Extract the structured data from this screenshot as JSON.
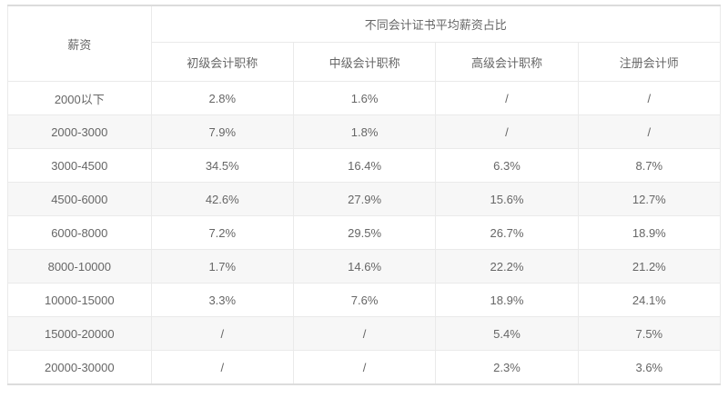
{
  "colors": {
    "background": "#ffffff",
    "stripe_row": "#f7f7f7",
    "border_inner": "#eaeaea",
    "border_outer": "#dcdcdc",
    "text": "#666666",
    "header_text": "#555555"
  },
  "table": {
    "corner_header": "薪资",
    "group_header": "不同会计证书平均薪资占比",
    "columns": [
      "初级会计职称",
      "中级会计职称",
      "高级会计职称",
      "注册会计师"
    ],
    "no_data_symbol": "/",
    "rows": [
      {
        "label": "2000以下",
        "values": [
          "2.8%",
          "1.6%",
          "/",
          "/"
        ]
      },
      {
        "label": "2000-3000",
        "values": [
          "7.9%",
          "1.8%",
          "/",
          "/"
        ]
      },
      {
        "label": "3000-4500",
        "values": [
          "34.5%",
          "16.4%",
          "6.3%",
          "8.7%"
        ]
      },
      {
        "label": "4500-6000",
        "values": [
          "42.6%",
          "27.9%",
          "15.6%",
          "12.7%"
        ]
      },
      {
        "label": "6000-8000",
        "values": [
          "7.2%",
          "29.5%",
          "26.7%",
          "18.9%"
        ]
      },
      {
        "label": "8000-10000",
        "values": [
          "1.7%",
          "14.6%",
          "22.2%",
          "21.2%"
        ]
      },
      {
        "label": "10000-15000",
        "values": [
          "3.3%",
          "7.6%",
          "18.9%",
          "24.1%"
        ]
      },
      {
        "label": "15000-20000",
        "values": [
          "/",
          "/",
          "5.4%",
          "7.5%"
        ]
      },
      {
        "label": "20000-30000",
        "values": [
          "/",
          "/",
          "2.3%",
          "3.6%"
        ]
      }
    ]
  },
  "chart_data": {
    "type": "table",
    "title": "不同会计证书平均薪资占比",
    "row_header_label": "薪资",
    "categories": [
      "2000以下",
      "2000-3000",
      "3000-4500",
      "4500-6000",
      "6000-8000",
      "8000-10000",
      "10000-15000",
      "15000-20000",
      "20000-30000"
    ],
    "series": [
      {
        "name": "初级会计职称",
        "values": [
          2.8,
          7.9,
          34.5,
          42.6,
          7.2,
          1.7,
          3.3,
          null,
          null
        ]
      },
      {
        "name": "中级会计职称",
        "values": [
          1.6,
          1.8,
          16.4,
          27.9,
          29.5,
          14.6,
          7.6,
          null,
          null
        ]
      },
      {
        "name": "高级会计职称",
        "values": [
          null,
          null,
          6.3,
          15.6,
          26.7,
          22.2,
          18.9,
          5.4,
          2.3
        ]
      },
      {
        "name": "注册会计师",
        "values": [
          null,
          null,
          8.7,
          12.7,
          18.9,
          21.2,
          24.1,
          7.5,
          3.6
        ]
      }
    ],
    "unit": "%",
    "null_display": "/"
  }
}
